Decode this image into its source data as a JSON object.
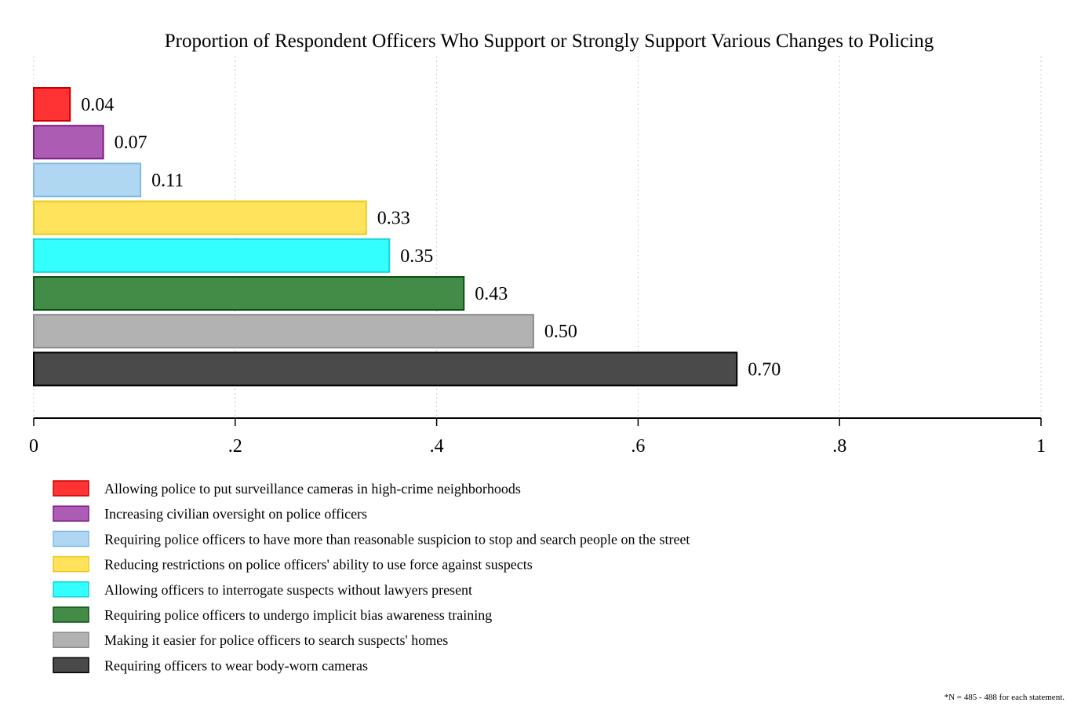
{
  "chart_data": {
    "type": "bar",
    "orientation": "horizontal",
    "title": "Proportion of Respondent Officers Who Support or Strongly Support Various Changes to Policing",
    "xlabel": "",
    "ylabel": "",
    "xlim": [
      0,
      1
    ],
    "xticks": [
      0,
      0.2,
      0.4,
      0.6,
      0.8,
      1
    ],
    "xtick_labels": [
      "0",
      ".2",
      ".4",
      ".6",
      ".8",
      "1"
    ],
    "grid": "vertical dotted",
    "legend_placement": "bottom-left",
    "categories": [
      "Allowing police to put surveillance cameras in high-crime neighborhoods",
      "Increasing civilian oversight on police officers",
      "Requiring police officers to have more than reasonable suspicion to stop and search people on the street",
      "Reducing restrictions on police officers' ability to use force against suspects",
      "Allowing officers to interrogate suspects without lawyers present",
      "Requiring police officers to undergo implicit bias awareness training",
      "Making it easier for police officers to search suspects' homes",
      "Requiring officers to wear body-worn cameras"
    ],
    "values": [
      0.036,
      0.069,
      0.106,
      0.33,
      0.353,
      0.427,
      0.496,
      0.698
    ],
    "value_labels": [
      "0.04",
      "0.07",
      "0.11",
      "0.33",
      "0.35",
      "0.43",
      "0.50",
      "0.70"
    ],
    "colors": [
      "#ff3333",
      "#ac5cb3",
      "#b0d7f2",
      "#ffe35c",
      "#33ffff",
      "#438c47",
      "#b2b2b2",
      "#4a4a4a"
    ],
    "edge_colors": [
      "#c80000",
      "#7e1a86",
      "#7fbbe6",
      "#ecc81a",
      "#1ad0d6",
      "#0c4f12",
      "#8a8a8a",
      "#000000"
    ],
    "footnote": "*N = 485 - 488 for each statement."
  }
}
